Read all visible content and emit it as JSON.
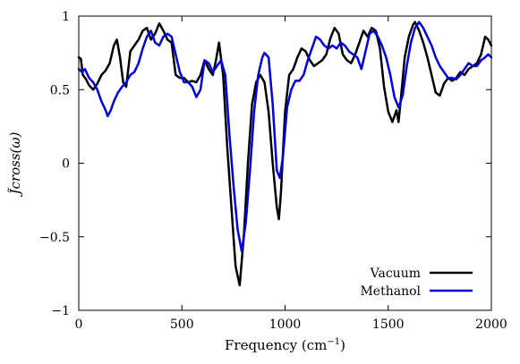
{
  "chart_data": {
    "type": "line",
    "xlabel": "Frequency (cm",
    "xlabel_sup": "−1",
    "xlabel_tail": ")",
    "ylabel": "J̃cross(ω)",
    "xlim": [
      0,
      2000
    ],
    "ylim": [
      -1,
      1
    ],
    "xticks": [
      0,
      500,
      1000,
      1500,
      2000
    ],
    "xtick_labels": [
      "0",
      "500",
      "1000",
      "1500",
      "2000"
    ],
    "yticks": [
      -1,
      -0.5,
      0,
      0.5,
      1
    ],
    "ytick_labels": [
      "−1",
      "−0.5",
      "0",
      "0.5",
      "1"
    ],
    "grid": false,
    "legend_position": "bottom-right",
    "series": [
      {
        "name": "Vacuum",
        "color": "#000000",
        "x": [
          0,
          10,
          20,
          35,
          50,
          70,
          90,
          110,
          130,
          150,
          170,
          185,
          200,
          215,
          230,
          250,
          270,
          290,
          310,
          330,
          350,
          370,
          390,
          410,
          430,
          450,
          470,
          490,
          510,
          530,
          550,
          570,
          590,
          610,
          630,
          650,
          665,
          680,
          700,
          720,
          740,
          760,
          780,
          800,
          820,
          840,
          860,
          880,
          900,
          920,
          940,
          960,
          970,
          980,
          1000,
          1020,
          1040,
          1060,
          1080,
          1100,
          1120,
          1140,
          1160,
          1180,
          1200,
          1220,
          1240,
          1260,
          1280,
          1300,
          1320,
          1340,
          1360,
          1380,
          1400,
          1420,
          1440,
          1460,
          1480,
          1500,
          1520,
          1540,
          1550,
          1560,
          1580,
          1600,
          1620,
          1630,
          1650,
          1670,
          1690,
          1710,
          1730,
          1750,
          1770,
          1790,
          1810,
          1830,
          1850,
          1870,
          1890,
          1910,
          1930,
          1950,
          1970,
          1985,
          2000
        ],
        "y": [
          0.72,
          0.71,
          0.6,
          0.57,
          0.53,
          0.5,
          0.54,
          0.6,
          0.63,
          0.68,
          0.8,
          0.84,
          0.72,
          0.55,
          0.52,
          0.76,
          0.8,
          0.84,
          0.9,
          0.92,
          0.84,
          0.88,
          0.95,
          0.9,
          0.84,
          0.82,
          0.6,
          0.58,
          0.58,
          0.55,
          0.56,
          0.55,
          0.6,
          0.7,
          0.64,
          0.6,
          0.7,
          0.82,
          0.6,
          0.1,
          -0.3,
          -0.7,
          -0.83,
          -0.5,
          0.0,
          0.4,
          0.55,
          0.6,
          0.55,
          0.35,
          0.0,
          -0.3,
          -0.38,
          -0.2,
          0.35,
          0.6,
          0.64,
          0.72,
          0.78,
          0.76,
          0.7,
          0.66,
          0.68,
          0.7,
          0.74,
          0.85,
          0.92,
          0.88,
          0.74,
          0.7,
          0.68,
          0.74,
          0.82,
          0.9,
          0.86,
          0.92,
          0.9,
          0.78,
          0.52,
          0.35,
          0.28,
          0.36,
          0.28,
          0.42,
          0.72,
          0.86,
          0.94,
          0.96,
          0.9,
          0.82,
          0.72,
          0.6,
          0.48,
          0.46,
          0.54,
          0.58,
          0.56,
          0.58,
          0.62,
          0.6,
          0.64,
          0.66,
          0.68,
          0.74,
          0.86,
          0.84,
          0.8
        ]
      },
      {
        "name": "Methanol",
        "color": "#0000dd",
        "x": [
          0,
          15,
          30,
          50,
          70,
          90,
          110,
          130,
          140,
          155,
          170,
          190,
          210,
          230,
          250,
          270,
          290,
          310,
          330,
          350,
          370,
          390,
          410,
          430,
          450,
          470,
          490,
          510,
          530,
          550,
          570,
          590,
          610,
          630,
          650,
          670,
          690,
          710,
          730,
          750,
          770,
          790,
          810,
          830,
          850,
          870,
          890,
          900,
          920,
          940,
          960,
          975,
          990,
          1010,
          1030,
          1050,
          1070,
          1090,
          1110,
          1130,
          1150,
          1170,
          1190,
          1210,
          1230,
          1250,
          1270,
          1290,
          1310,
          1330,
          1350,
          1370,
          1390,
          1410,
          1430,
          1450,
          1470,
          1490,
          1510,
          1530,
          1550,
          1570,
          1590,
          1610,
          1630,
          1650,
          1670,
          1690,
          1710,
          1730,
          1750,
          1770,
          1790,
          1810,
          1830,
          1850,
          1870,
          1890,
          1910,
          1930,
          1950,
          1970,
          1985,
          2000
        ],
        "y": [
          0.64,
          0.62,
          0.64,
          0.58,
          0.55,
          0.5,
          0.42,
          0.36,
          0.32,
          0.36,
          0.42,
          0.48,
          0.52,
          0.55,
          0.6,
          0.62,
          0.68,
          0.78,
          0.86,
          0.9,
          0.82,
          0.8,
          0.86,
          0.88,
          0.86,
          0.74,
          0.62,
          0.55,
          0.55,
          0.52,
          0.45,
          0.5,
          0.7,
          0.68,
          0.62,
          0.66,
          0.7,
          0.6,
          0.2,
          -0.15,
          -0.45,
          -0.6,
          -0.4,
          -0.05,
          0.35,
          0.6,
          0.72,
          0.75,
          0.72,
          0.4,
          -0.05,
          -0.1,
          0.05,
          0.38,
          0.5,
          0.56,
          0.56,
          0.6,
          0.7,
          0.78,
          0.86,
          0.84,
          0.8,
          0.78,
          0.8,
          0.78,
          0.82,
          0.8,
          0.76,
          0.74,
          0.72,
          0.64,
          0.76,
          0.88,
          0.9,
          0.86,
          0.8,
          0.72,
          0.6,
          0.45,
          0.38,
          0.46,
          0.66,
          0.82,
          0.92,
          0.96,
          0.92,
          0.86,
          0.8,
          0.72,
          0.66,
          0.62,
          0.58,
          0.58,
          0.57,
          0.6,
          0.64,
          0.68,
          0.66,
          0.66,
          0.7,
          0.72,
          0.74,
          0.72
        ]
      }
    ]
  }
}
